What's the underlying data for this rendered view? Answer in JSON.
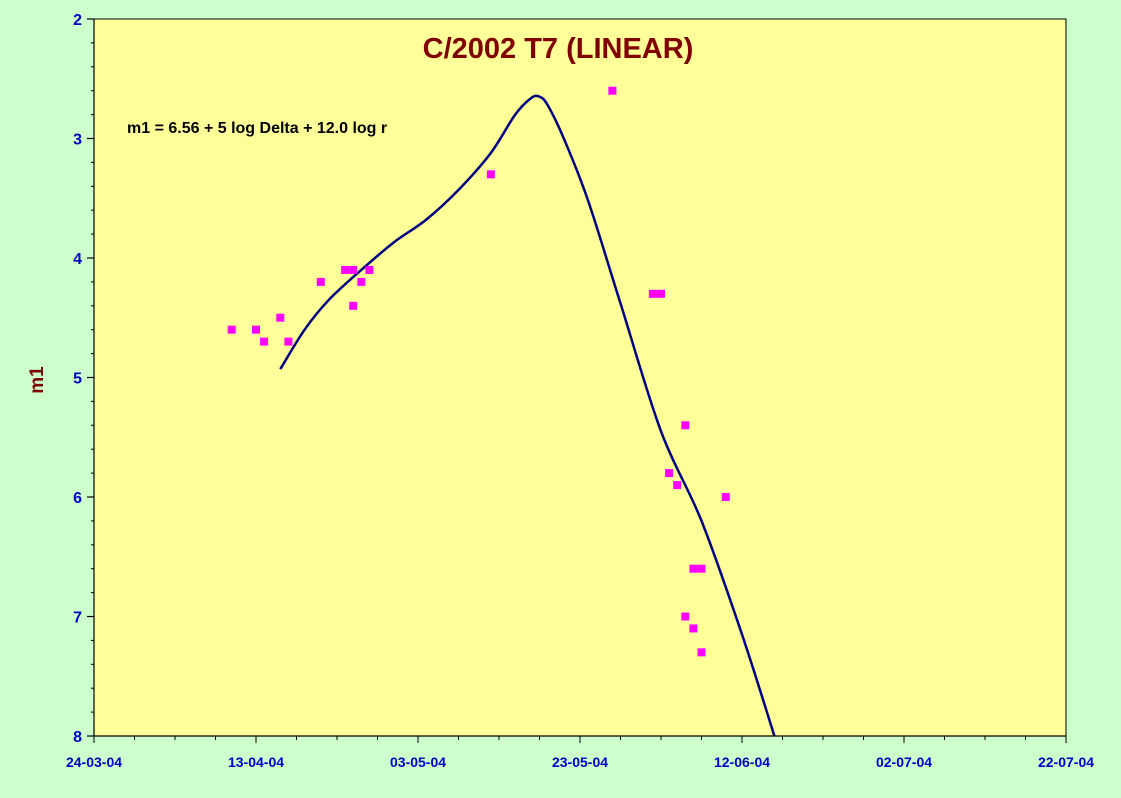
{
  "chart_data": {
    "type": "scatter",
    "title": "C/2002 T7 (LINEAR)",
    "annotation": "m1 = 6.56 + 5 log Delta + 12.0 log r",
    "xlabel": "",
    "ylabel": "m1",
    "x_tick_labels": [
      "24-03-04",
      "13-04-04",
      "03-05-04",
      "23-05-04",
      "12-06-04",
      "02-07-04",
      "22-07-04"
    ],
    "xlim": [
      "2004-03-24",
      "2004-07-22"
    ],
    "ylim": [
      2,
      8
    ],
    "y_inverted": true,
    "y_ticks": [
      "2",
      "3",
      "4",
      "5",
      "6",
      "7",
      "8"
    ],
    "grid": false,
    "colors": {
      "plot_background": "#ffff99",
      "page_background": "#ccffcc",
      "points": "#ff00ff",
      "model_line": "#000080",
      "title": "#800000",
      "axis_labels": "#0000cc"
    },
    "series": [
      {
        "type": "scatter",
        "x": [
          "2004-04-10",
          "2004-04-13",
          "2004-04-14",
          "2004-04-16",
          "2004-04-17",
          "2004-04-21",
          "2004-04-24",
          "2004-04-25",
          "2004-04-25",
          "2004-04-26",
          "2004-04-27",
          "2004-05-12",
          "2004-05-27",
          "2004-06-01",
          "2004-06-02",
          "2004-06-03",
          "2004-06-04",
          "2004-06-05",
          "2004-06-05",
          "2004-06-06",
          "2004-06-06",
          "2004-06-07",
          "2004-06-07",
          "2004-06-10"
        ],
        "y": [
          4.6,
          4.6,
          4.7,
          4.5,
          4.7,
          4.2,
          4.1,
          4.1,
          4.4,
          4.2,
          4.1,
          3.3,
          2.6,
          4.3,
          4.3,
          5.8,
          5.9,
          7.0,
          5.4,
          7.1,
          6.6,
          7.3,
          6.6,
          6.0
        ]
      },
      {
        "type": "line",
        "x": [
          "2004-04-16",
          "2004-04-19",
          "2004-04-22",
          "2004-04-26",
          "2004-04-30",
          "2004-05-04",
          "2004-05-08",
          "2004-05-12",
          "2004-05-15",
          "2004-05-17",
          "2004-05-18",
          "2004-05-19",
          "2004-05-21",
          "2004-05-24",
          "2004-05-28",
          "2004-06-02",
          "2004-06-07",
          "2004-06-12",
          "2004-06-16"
        ],
        "y": [
          4.93,
          4.6,
          4.35,
          4.1,
          3.87,
          3.68,
          3.43,
          3.12,
          2.8,
          2.66,
          2.65,
          2.72,
          3.0,
          3.52,
          4.38,
          5.45,
          6.2,
          7.15,
          8.0
        ]
      }
    ]
  }
}
